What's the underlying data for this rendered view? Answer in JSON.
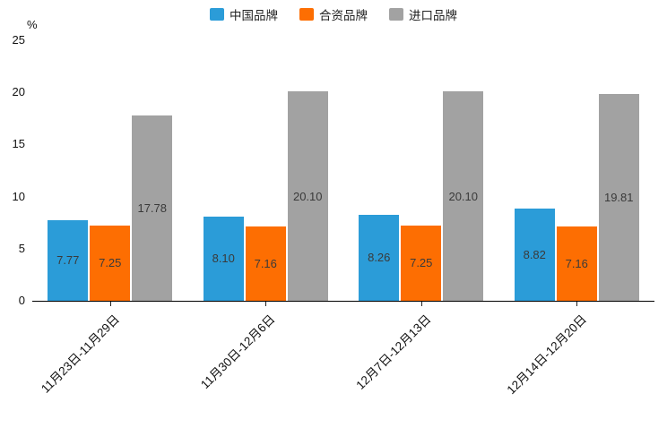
{
  "chart_data": {
    "type": "bar",
    "title": "",
    "unit_label": "%",
    "categories": [
      "11月23日-11月29日",
      "11月30日-12月6日",
      "12月7日-12月13日",
      "12月14日-12月20日"
    ],
    "series": [
      {
        "name": "中国品牌",
        "color": "#2b9cd8",
        "values": [
          7.77,
          8.1,
          8.26,
          8.82
        ],
        "labels": [
          "7.77",
          "8.10",
          "8.26",
          "8.82"
        ]
      },
      {
        "name": "合资品牌",
        "color": "#fd6e02",
        "values": [
          7.25,
          7.16,
          7.25,
          7.16
        ],
        "labels": [
          "7.25",
          "7.16",
          "7.25",
          "7.16"
        ]
      },
      {
        "name": "进口品牌",
        "color": "#a2a2a2",
        "values": [
          17.78,
          20.1,
          20.1,
          19.81
        ],
        "labels": [
          "17.78",
          "20.10",
          "20.10",
          "19.81"
        ]
      }
    ],
    "ylim": [
      0,
      25
    ],
    "yticks": [
      0,
      5,
      10,
      15,
      20,
      25
    ],
    "grid": false,
    "legend_position": "top"
  }
}
